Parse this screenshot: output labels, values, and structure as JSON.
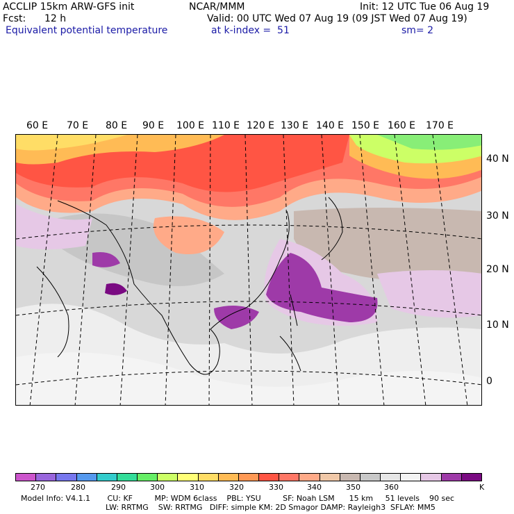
{
  "header": {
    "line1_left": "ACCLIP 15km ARW-GFS init",
    "line1_center": "NCAR/MMM",
    "line1_right": "Init: 12 UTC Tue 06 Aug 19",
    "fcst_label": "Fcst:",
    "fcst_value": "12 h",
    "valid": "Valid: 00 UTC Wed 07 Aug 19 (09 JST Wed 07 Aug 19)",
    "field": "Equivalent potential temperature",
    "level": "at k-index =  51",
    "smooth": "sm= 2"
  },
  "map": {
    "lon_labels": [
      "60 E",
      "70 E",
      "80 E",
      "90 E",
      "100 E",
      "110 E",
      "120 E",
      "130 E",
      "140 E",
      "150 E",
      "160 E",
      "170 E"
    ],
    "lat_labels": [
      "40 N",
      "30 N",
      "20 N",
      "10 N",
      "0"
    ]
  },
  "colorbar": {
    "colors": [
      "#cc55cc",
      "#9966dd",
      "#7777ee",
      "#5599ee",
      "#33cccc",
      "#33dd99",
      "#66ee66",
      "#ccff66",
      "#ffff77",
      "#ffdd66",
      "#ffbb55",
      "#ff9955",
      "#ff5544",
      "#ff7766",
      "#ffaa88",
      "#f0c8a8",
      "#c8b8b0",
      "#c8c8c8",
      "#e6e6e6",
      "#f4f4f4",
      "#e6c8e6",
      "#9e3aa8",
      "#7a0a82"
    ],
    "labels": [
      "270",
      "280",
      "290",
      "300",
      "310",
      "320",
      "330",
      "340",
      "350",
      "360"
    ],
    "unit": "K"
  },
  "footer": {
    "line1": "Model Info: V4.1.1       CU: KF         MP: WDM 6class    PBL: YSU         SF: Noah LSM      15 km     51 levels    90 sec",
    "line2": "LW: RRTMG    SW: RRTMG   DIFF: simple KM: 2D Smagor DAMP: Rayleigh3  SFLAY: MM5"
  }
}
